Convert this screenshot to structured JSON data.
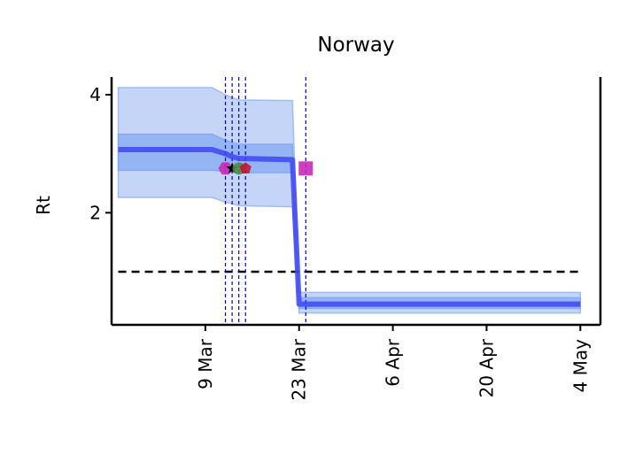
{
  "chart_data": {
    "type": "line",
    "title": "Norway",
    "xlabel": "",
    "ylabel": "Rt",
    "x_ticks": [
      "9 Mar",
      "23 Mar",
      "6 Apr",
      "20 Apr",
      "4 May"
    ],
    "y_ticks": [
      2,
      4
    ],
    "xlim": [
      "2020-02-24",
      "2020-05-07"
    ],
    "ylim": [
      0.1,
      4.3
    ],
    "series": [
      {
        "x": [
          "2020-02-25",
          "2020-03-10",
          "2020-03-12",
          "2020-03-13",
          "2020-03-14",
          "2020-03-22",
          "2020-03-23",
          "2020-05-04"
        ],
        "values": [
          3.07,
          3.07,
          3.0,
          2.95,
          2.92,
          2.9,
          0.45,
          0.45
        ],
        "interval_50": {
          "lower": [
            2.72,
            2.72,
            2.7,
            2.69,
            2.68,
            2.68,
            0.38,
            0.38
          ],
          "upper": [
            3.33,
            3.33,
            3.23,
            3.19,
            3.16,
            3.16,
            0.56,
            0.56
          ]
        },
        "interval_95": {
          "lower": [
            2.26,
            2.26,
            2.18,
            2.15,
            2.12,
            2.1,
            0.3,
            0.3
          ],
          "upper": [
            4.12,
            4.12,
            4.0,
            3.95,
            3.91,
            3.9,
            0.65,
            0.65
          ]
        }
      }
    ],
    "reference_line": {
      "y": 1.0,
      "x_start": "2020-02-25",
      "x_end": "2020-05-04",
      "style": "dashed"
    },
    "interventions": [
      {
        "date": "2020-03-12",
        "y": 2.75,
        "marker": "magenta-hexagon"
      },
      {
        "date": "2020-03-13",
        "y": 2.75,
        "marker": "black-star"
      },
      {
        "date": "2020-03-14",
        "y": 2.75,
        "marker": "green-circle"
      },
      {
        "date": "2020-03-15",
        "y": 2.75,
        "marker": "red-pentagon"
      },
      {
        "date": "2020-03-24",
        "y": 2.75,
        "marker": "magenta-square"
      }
    ],
    "intervention_lines": [
      "2020-03-12",
      "2020-03-13",
      "2020-03-14",
      "2020-03-15",
      "2020-03-24"
    ],
    "colors": {
      "line": "#3f47f2",
      "band95": "#c2d3f7",
      "band50": "#8aacf3",
      "vline": "#0000cc",
      "magenta": "#c72ab7",
      "green": "#4d8f4d",
      "red": "#c8102e",
      "black": "#000000"
    },
    "grid": false,
    "legend": "none"
  }
}
